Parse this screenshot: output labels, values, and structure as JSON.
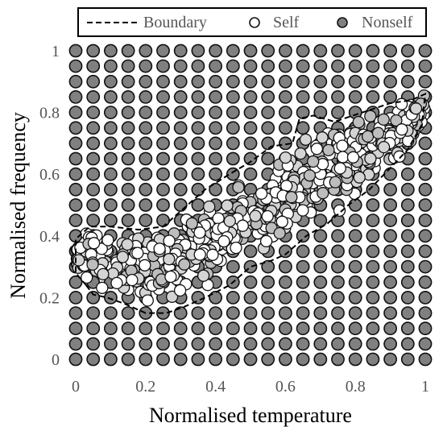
{
  "chart_data": {
    "type": "scatter",
    "title": "",
    "xlabel": "Normalised temperature",
    "ylabel": "Normalised frequency",
    "xlim": [
      0,
      1
    ],
    "ylim": [
      0,
      1
    ],
    "xticks": [
      "0",
      "0.2",
      "0.4",
      "0.6",
      "0.8",
      "1"
    ],
    "yticks": [
      "0",
      "0.2",
      "0.4",
      "0.6",
      "0.8",
      "1"
    ],
    "grid": false,
    "legend": {
      "placement": "top",
      "entries": [
        "Boundary",
        "Self",
        "Nonself"
      ]
    },
    "series": [
      {
        "name": "Boundary",
        "style": "dashed-line",
        "color": "#000000",
        "points": [
          [
            0.03,
            0.24
          ],
          [
            0.05,
            0.21
          ],
          [
            0.09,
            0.2
          ],
          [
            0.14,
            0.18
          ],
          [
            0.2,
            0.15
          ],
          [
            0.26,
            0.15
          ],
          [
            0.31,
            0.17
          ],
          [
            0.37,
            0.2
          ],
          [
            0.44,
            0.24
          ],
          [
            0.5,
            0.3
          ],
          [
            0.56,
            0.32
          ],
          [
            0.6,
            0.34
          ],
          [
            0.66,
            0.4
          ],
          [
            0.72,
            0.44
          ],
          [
            0.78,
            0.5
          ],
          [
            0.84,
            0.55
          ],
          [
            0.9,
            0.62
          ],
          [
            0.95,
            0.68
          ],
          [
            0.99,
            0.76
          ],
          [
            1.0,
            0.86
          ],
          [
            0.96,
            0.84
          ],
          [
            0.9,
            0.83
          ],
          [
            0.82,
            0.8
          ],
          [
            0.74,
            0.77
          ],
          [
            0.68,
            0.79
          ],
          [
            0.64,
            0.78
          ],
          [
            0.62,
            0.7
          ],
          [
            0.56,
            0.69
          ],
          [
            0.5,
            0.64
          ],
          [
            0.44,
            0.6
          ],
          [
            0.37,
            0.55
          ],
          [
            0.32,
            0.5
          ],
          [
            0.25,
            0.43
          ],
          [
            0.18,
            0.42
          ],
          [
            0.1,
            0.43
          ],
          [
            0.04,
            0.43
          ],
          [
            0.0,
            0.39
          ],
          [
            0.0,
            0.28
          ],
          [
            0.03,
            0.24
          ]
        ]
      },
      {
        "name": "Self",
        "style": "hollow-circle",
        "color": "#ffffff",
        "edge": "#111111",
        "band": {
          "lower": [
            [
              0.0,
              0.25
            ],
            [
              0.1,
              0.2
            ],
            [
              0.2,
              0.15
            ],
            [
              0.3,
              0.18
            ],
            [
              0.4,
              0.23
            ],
            [
              0.5,
              0.3
            ],
            [
              0.6,
              0.35
            ],
            [
              0.7,
              0.43
            ],
            [
              0.8,
              0.51
            ],
            [
              0.9,
              0.61
            ],
            [
              1.0,
              0.73
            ]
          ],
          "upper": [
            [
              0.0,
              0.43
            ],
            [
              0.1,
              0.43
            ],
            [
              0.2,
              0.43
            ],
            [
              0.3,
              0.49
            ],
            [
              0.4,
              0.57
            ],
            [
              0.5,
              0.64
            ],
            [
              0.6,
              0.7
            ],
            [
              0.7,
              0.78
            ],
            [
              0.8,
              0.8
            ],
            [
              0.9,
              0.83
            ],
            [
              1.0,
              0.87
            ]
          ]
        },
        "count": 650
      },
      {
        "name": "Nonself",
        "style": "filled-circle",
        "color": "#808080",
        "edge": "#111111",
        "grid_step": 0.05
      }
    ]
  }
}
